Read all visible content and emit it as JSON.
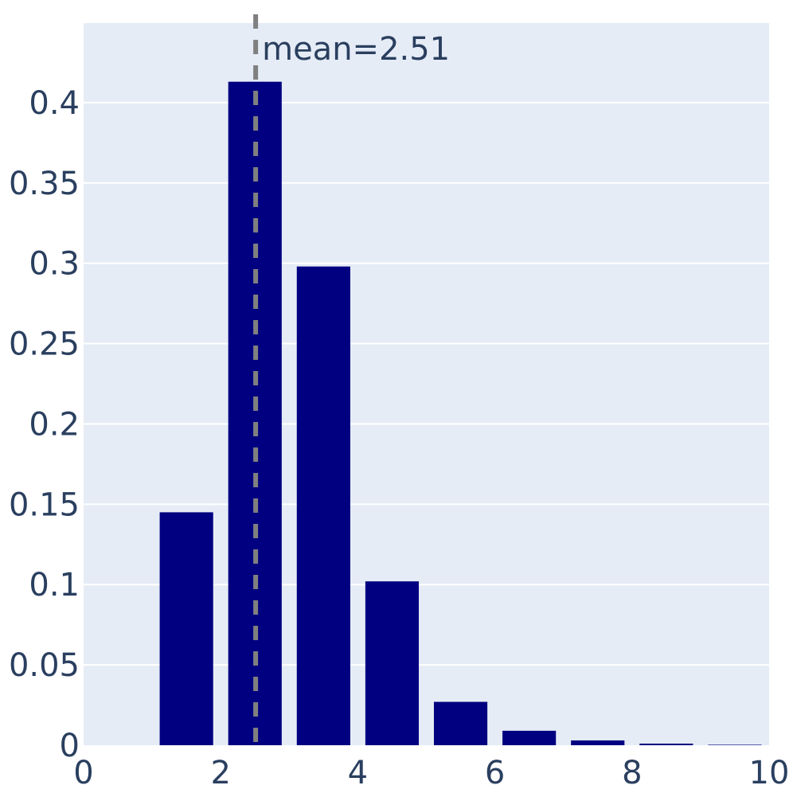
{
  "chart_data": {
    "type": "bar",
    "x": [
      0.5,
      1.5,
      2.5,
      3.5,
      4.5,
      5.5,
      6.5,
      7.5,
      8.5,
      9.5
    ],
    "values": [
      0.0,
      0.145,
      0.413,
      0.298,
      0.102,
      0.027,
      0.009,
      0.003,
      0.001,
      0.0003
    ],
    "bar_width": 0.78,
    "xlim": [
      0,
      10
    ],
    "ylim": [
      0,
      0.45
    ],
    "xticks": [
      0,
      2,
      4,
      6,
      8,
      10
    ],
    "xtick_labels": [
      "0",
      "2",
      "4",
      "6",
      "8",
      "10"
    ],
    "yticks": [
      0,
      0.05,
      0.1,
      0.15,
      0.2,
      0.25,
      0.3,
      0.35,
      0.4
    ],
    "ytick_labels": [
      "0",
      "0.05",
      "0.1",
      "0.15",
      "0.2",
      "0.25",
      "0.3",
      "0.35",
      "0.4"
    ],
    "mean_line": {
      "x": 2.51,
      "label": "mean=2.51",
      "color": "#808080",
      "style": "dashed"
    },
    "title": "",
    "xlabel": "",
    "ylabel": "",
    "grid": true,
    "colors": {
      "bar": "#000080",
      "plot_bg": "#e5ecf6",
      "grid": "#ffffff",
      "text": "#2a3f5f"
    }
  }
}
